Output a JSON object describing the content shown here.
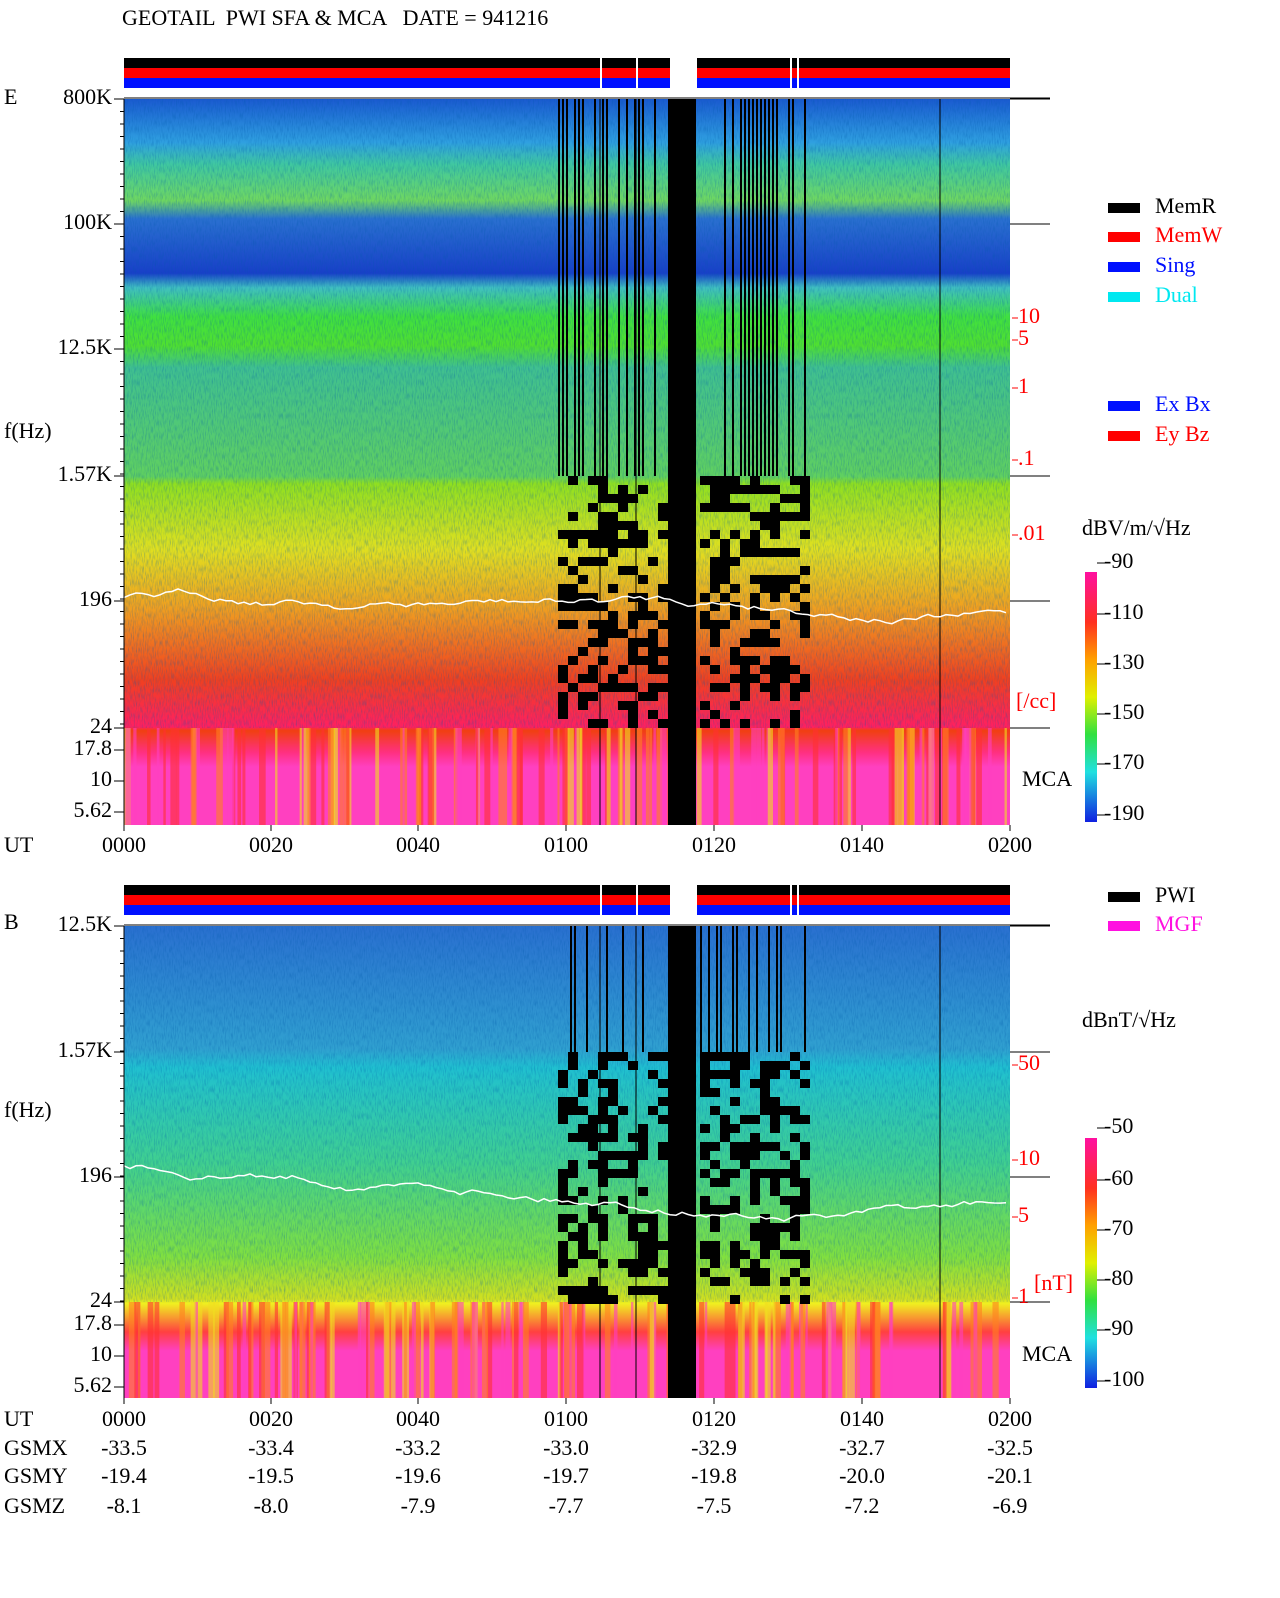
{
  "header": {
    "title": "GEOTAIL  PWI SFA & MCA   DATE = 941216"
  },
  "panels": [
    {
      "component": "E",
      "freq_labels": [
        "800K",
        "100K",
        "12.5K",
        "1.57K",
        "196",
        "24",
        "17.8",
        "10",
        "5.62"
      ],
      "freq_axis_label": "f(Hz)",
      "time_axis_label": "UT",
      "time_labels": [
        "0000",
        "0020",
        "0040",
        "0100",
        "0120",
        "0140",
        "0200"
      ],
      "right_scale": {
        "labels": [
          "10",
          "5",
          "1",
          ".1",
          ".01"
        ],
        "unit": "[/cc]"
      },
      "mca_label": "MCA",
      "legend": [
        "MemR",
        "MemW",
        "Sing",
        "Dual"
      ],
      "legend2": [
        "Ex Bx",
        "Ey Bz"
      ],
      "colorbar": {
        "unit": "dBV/m/√Hz",
        "ticks": [
          "-90",
          "-110",
          "-130",
          "-150",
          "-170",
          "-190"
        ]
      }
    },
    {
      "component": "B",
      "freq_labels": [
        "12.5K",
        "1.57K",
        "196",
        "24",
        "17.8",
        "10",
        "5.62"
      ],
      "freq_axis_label": "f(Hz)",
      "right_scale": {
        "labels": [
          "50",
          "10",
          "5",
          "1"
        ],
        "unit": "[nT]"
      },
      "mca_label": "MCA",
      "legend": [
        "PWI",
        "MGF"
      ],
      "colorbar": {
        "unit": "dBnT/√Hz",
        "ticks": [
          "-50",
          "-60",
          "-70",
          "-80",
          "-90",
          "-100"
        ]
      }
    }
  ],
  "ephemeris": {
    "ut_label": "UT",
    "time_labels": [
      "0000",
      "0020",
      "0040",
      "0100",
      "0120",
      "0140",
      "0200"
    ],
    "rows": [
      {
        "name": "GSMX",
        "values": [
          "-33.5",
          "-33.4",
          "-33.2",
          "-33.0",
          "-32.9",
          "-32.7",
          "-32.5"
        ]
      },
      {
        "name": "GSMY",
        "values": [
          "-19.4",
          "-19.5",
          "-19.6",
          "-19.7",
          "-19.8",
          "-20.0",
          "-20.1"
        ]
      },
      {
        "name": "GSMZ",
        "values": [
          "-8.1",
          "-8.0",
          "-7.9",
          "-7.7",
          "-7.5",
          "-7.2",
          "-6.9"
        ]
      }
    ]
  }
}
